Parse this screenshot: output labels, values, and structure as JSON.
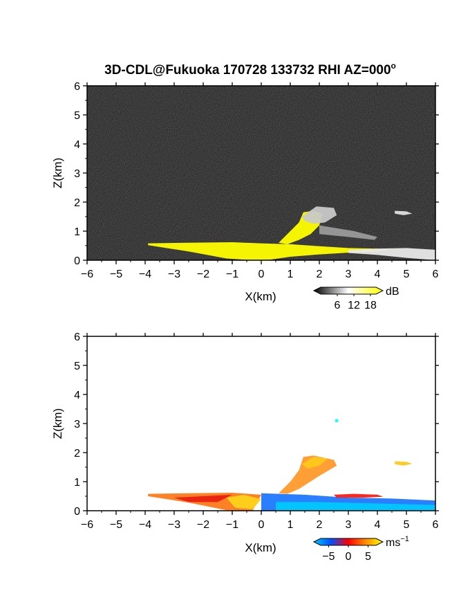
{
  "title": "3D-CDL@Fukuoka 170728 133732 RHI AZ=000",
  "title_suffix": "o",
  "chart_data": [
    {
      "type": "heatmap",
      "name": "intensity",
      "xlabel": "X(km)",
      "ylabel": "Z(km)",
      "xlim": [
        -6,
        6
      ],
      "ylim": [
        0,
        6
      ],
      "x_ticks": [
        -6,
        -5,
        -4,
        -3,
        -2,
        -1,
        0,
        1,
        2,
        3,
        4,
        5,
        6
      ],
      "y_ticks": [
        0,
        1,
        2,
        3,
        4,
        5,
        6
      ],
      "background_color": "#2a2a2a",
      "colorbar": {
        "unit": "dB",
        "ticks": [
          6,
          12,
          18
        ],
        "range": [
          0,
          20
        ],
        "colors": [
          "#000000",
          "#ffffff",
          "#ffff00"
        ]
      },
      "regions": [
        {
          "label": "near-surface echo",
          "color": "#ffff00",
          "polygon": [
            [
              -3.9,
              0.58
            ],
            [
              -2.5,
              0.6
            ],
            [
              -1.0,
              0.62
            ],
            [
              0,
              0.58
            ],
            [
              1,
              0.55
            ],
            [
              2,
              0.48
            ],
            [
              3,
              0.42
            ],
            [
              4,
              0.4
            ],
            [
              4.5,
              0.38
            ],
            [
              4.0,
              0.3
            ],
            [
              3,
              0.26
            ],
            [
              2,
              0.2
            ],
            [
              1,
              0.12
            ],
            [
              0.3,
              0.02
            ],
            [
              -0.3,
              0.0
            ],
            [
              -1.2,
              0.06
            ],
            [
              -2.5,
              0.3
            ],
            [
              -3.9,
              0.52
            ]
          ]
        },
        {
          "label": "rising plume",
          "color": "#ffff00",
          "polygon": [
            [
              0.6,
              0.6
            ],
            [
              1.0,
              1.0
            ],
            [
              1.3,
              1.3
            ],
            [
              1.45,
              1.65
            ],
            [
              1.8,
              1.7
            ],
            [
              2.1,
              1.6
            ],
            [
              2.0,
              1.2
            ],
            [
              1.7,
              0.9
            ],
            [
              1.3,
              0.7
            ],
            [
              0.9,
              0.55
            ]
          ]
        },
        {
          "label": "plume halo",
          "color": "#c8c8c8",
          "polygon": [
            [
              1.4,
              1.5
            ],
            [
              1.9,
              1.85
            ],
            [
              2.5,
              1.8
            ],
            [
              2.6,
              1.55
            ],
            [
              2.2,
              1.3
            ],
            [
              1.8,
              1.25
            ],
            [
              1.5,
              1.35
            ]
          ]
        },
        {
          "label": "surface clutter",
          "color": "#e8e8e8",
          "polygon": [
            [
              3.0,
              0.35
            ],
            [
              4.0,
              0.4
            ],
            [
              5.0,
              0.42
            ],
            [
              6.0,
              0.36
            ],
            [
              6.0,
              0.0
            ],
            [
              5.0,
              0.08
            ],
            [
              4.0,
              0.18
            ],
            [
              3.0,
              0.25
            ]
          ]
        },
        {
          "label": "elevated patch",
          "color": "#e0e0e0",
          "polygon": [
            [
              4.6,
              1.7
            ],
            [
              5.0,
              1.68
            ],
            [
              5.2,
              1.6
            ],
            [
              4.9,
              1.55
            ],
            [
              4.6,
              1.6
            ]
          ]
        },
        {
          "label": "streaks",
          "color": "#9a9a9a",
          "polygon": [
            [
              2.0,
              1.2
            ],
            [
              3.2,
              1.0
            ],
            [
              4.0,
              0.8
            ],
            [
              3.9,
              0.7
            ],
            [
              3.0,
              0.8
            ],
            [
              2.0,
              0.9
            ]
          ]
        }
      ]
    },
    {
      "type": "heatmap",
      "name": "velocity",
      "xlabel": "X(km)",
      "ylabel": "Z(km)",
      "xlim": [
        -6,
        6
      ],
      "ylim": [
        0,
        6
      ],
      "x_ticks": [
        -6,
        -5,
        -4,
        -3,
        -2,
        -1,
        0,
        1,
        2,
        3,
        4,
        5,
        6
      ],
      "y_ticks": [
        0,
        1,
        2,
        3,
        4,
        5,
        6
      ],
      "background_color": "#ffffff",
      "colorbar": {
        "unit": "ms",
        "unit_exponent": "−1",
        "ticks": [
          "−5",
          "0",
          "5"
        ],
        "range": [
          -7,
          7
        ],
        "colors": [
          "#00c8ff",
          "#0050ff",
          "#ff0000",
          "#ff8c00",
          "#ffff00"
        ]
      },
      "regions": [
        {
          "label": "near-surface orange",
          "color": "#ff7a1a",
          "polygon": [
            [
              -3.9,
              0.58
            ],
            [
              -2.5,
              0.6
            ],
            [
              -1.0,
              0.62
            ],
            [
              0,
              0.55
            ],
            [
              -0.3,
              0.0
            ],
            [
              -1.2,
              0.02
            ],
            [
              -2.5,
              0.28
            ],
            [
              -3.9,
              0.5
            ]
          ]
        },
        {
          "label": "near-surface red",
          "color": "#e82010",
          "polygon": [
            [
              -3.0,
              0.45
            ],
            [
              -2.0,
              0.5
            ],
            [
              -1.0,
              0.55
            ],
            [
              -1.5,
              0.3
            ],
            [
              -2.5,
              0.3
            ]
          ]
        },
        {
          "label": "yellow core",
          "color": "#ffd21a",
          "polygon": [
            [
              -1.2,
              0.45
            ],
            [
              -0.6,
              0.55
            ],
            [
              0,
              0.4
            ],
            [
              -0.3,
              0.05
            ],
            [
              -0.9,
              0.1
            ]
          ]
        },
        {
          "label": "blue low layer",
          "color": "#1e78ff",
          "polygon": [
            [
              0,
              0.6
            ],
            [
              1.5,
              0.55
            ],
            [
              3,
              0.45
            ],
            [
              4.5,
              0.42
            ],
            [
              6.0,
              0.35
            ],
            [
              6.0,
              0.0
            ],
            [
              4.0,
              0.02
            ],
            [
              2.0,
              0.0
            ],
            [
              0.0,
              0.0
            ]
          ]
        },
        {
          "label": "cyan low layer",
          "color": "#00c8ff",
          "polygon": [
            [
              0.5,
              0.3
            ],
            [
              2.0,
              0.3
            ],
            [
              4.0,
              0.25
            ],
            [
              6.0,
              0.2
            ],
            [
              6.0,
              0.0
            ],
            [
              0.5,
              0.0
            ]
          ]
        },
        {
          "label": "rising plume",
          "color": "#ff9a2a",
          "polygon": [
            [
              0.6,
              0.6
            ],
            [
              1.0,
              1.0
            ],
            [
              1.3,
              1.4
            ],
            [
              1.45,
              1.85
            ],
            [
              1.8,
              1.9
            ],
            [
              2.5,
              1.75
            ],
            [
              2.6,
              1.55
            ],
            [
              2.0,
              1.2
            ],
            [
              1.3,
              0.75
            ],
            [
              0.9,
              0.58
            ]
          ]
        },
        {
          "label": "plume yellow",
          "color": "#ffc81a",
          "polygon": [
            [
              1.4,
              1.6
            ],
            [
              1.8,
              1.85
            ],
            [
              2.3,
              1.8
            ],
            [
              2.0,
              1.55
            ],
            [
              1.6,
              1.45
            ]
          ]
        },
        {
          "label": "red layer",
          "color": "#ff1a10",
          "polygon": [
            [
              2.5,
              0.55
            ],
            [
              3.2,
              0.58
            ],
            [
              4.0,
              0.55
            ],
            [
              4.2,
              0.48
            ],
            [
              3.5,
              0.45
            ],
            [
              2.6,
              0.45
            ]
          ]
        },
        {
          "label": "elevated patch",
          "color": "#ffc81a",
          "polygon": [
            [
              4.6,
              1.7
            ],
            [
              5.0,
              1.68
            ],
            [
              5.2,
              1.62
            ],
            [
              4.9,
              1.55
            ],
            [
              4.6,
              1.6
            ]
          ]
        },
        {
          "label": "isolated cyan",
          "color": "#00ffff",
          "polygon": [
            [
              2.55,
              3.15
            ],
            [
              2.65,
              3.15
            ],
            [
              2.65,
              3.05
            ],
            [
              2.55,
              3.05
            ]
          ]
        }
      ]
    }
  ]
}
